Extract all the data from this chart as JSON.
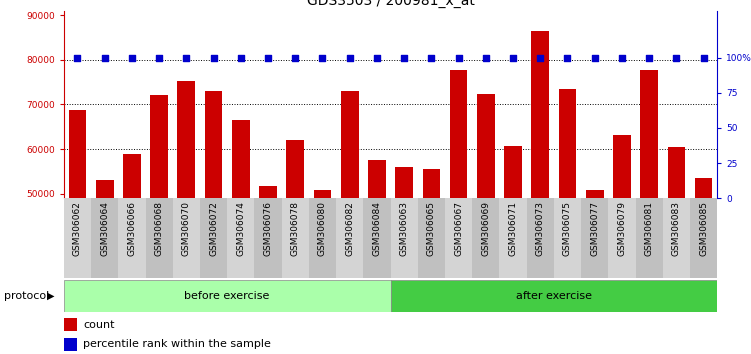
{
  "title": "GDS3503 / 200981_x_at",
  "categories": [
    "GSM306062",
    "GSM306064",
    "GSM306066",
    "GSM306068",
    "GSM306070",
    "GSM306072",
    "GSM306074",
    "GSM306076",
    "GSM306078",
    "GSM306080",
    "GSM306082",
    "GSM306084",
    "GSM306063",
    "GSM306065",
    "GSM306067",
    "GSM306069",
    "GSM306071",
    "GSM306073",
    "GSM306075",
    "GSM306077",
    "GSM306079",
    "GSM306081",
    "GSM306083",
    "GSM306085"
  ],
  "values": [
    68800,
    53000,
    58800,
    72200,
    75300,
    73000,
    66600,
    51800,
    62000,
    50800,
    73000,
    57600,
    55900,
    55600,
    77800,
    72300,
    60800,
    86500,
    73500,
    50800,
    63200,
    77800,
    60500,
    53500
  ],
  "bar_color": "#cc0000",
  "percentile_color": "#0000cc",
  "before_count": 12,
  "after_count": 12,
  "before_label": "before exercise",
  "after_label": "after exercise",
  "protocol_label": "protocol",
  "before_color": "#aaffaa",
  "after_color": "#44cc44",
  "legend_count_label": "count",
  "legend_percentile_label": "percentile rank within the sample",
  "ylim_left": [
    49000,
    91000
  ],
  "yticks_left": [
    50000,
    60000,
    70000,
    80000,
    90000
  ],
  "ylim_right": [
    0,
    133.33
  ],
  "yticks_right": [
    0,
    25,
    50,
    75,
    100
  ],
  "title_fontsize": 10,
  "tick_fontsize": 6.5,
  "label_fontsize": 8,
  "background_color": "#ffffff"
}
